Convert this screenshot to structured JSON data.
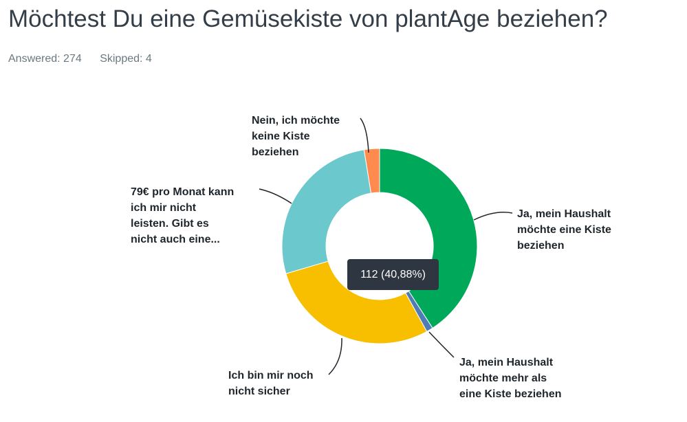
{
  "question": {
    "title": "Möchtest Du eine Gemüsekiste von plantAge beziehen?",
    "answered": "Answered: 274",
    "skipped": "Skipped: 4"
  },
  "chart_data": {
    "type": "pie",
    "donut": true,
    "total": 274,
    "slices": [
      {
        "label": "Ja, mein Haushalt möchte eine Kiste beziehen",
        "lines": [
          "Ja, mein Haushalt",
          "möchte eine Kiste",
          "beziehen"
        ],
        "value": 112,
        "percent": 40.88,
        "color": "#00a85a"
      },
      {
        "label": "Ja, mein Haushalt möchte mehr als eine Kiste beziehen",
        "lines": [
          "Ja, mein Haushalt",
          "möchte mehr als",
          "eine Kiste beziehen"
        ],
        "value": 3,
        "color": "#507cb6"
      },
      {
        "label": "Ich bin mir noch nicht sicher",
        "lines": [
          "Ich bin mir noch",
          "nicht sicher"
        ],
        "value": 78,
        "color": "#f8be00"
      },
      {
        "label": "79€ pro Monat kann ich mir nicht leisten. Gibt es nicht auch eine...",
        "lines": [
          "79€ pro Monat kann",
          "ich mir nicht",
          "leisten. Gibt es",
          "nicht auch eine..."
        ],
        "value": 74,
        "color": "#6bc8cd"
      },
      {
        "label": "Nein, ich möchte keine Kiste beziehen",
        "lines": [
          "Nein, ich möchte",
          "keine Kiste",
          "beziehen"
        ],
        "value": 7,
        "color": "#ff8b4f"
      }
    ],
    "tooltip": "112 (40,88%)"
  }
}
